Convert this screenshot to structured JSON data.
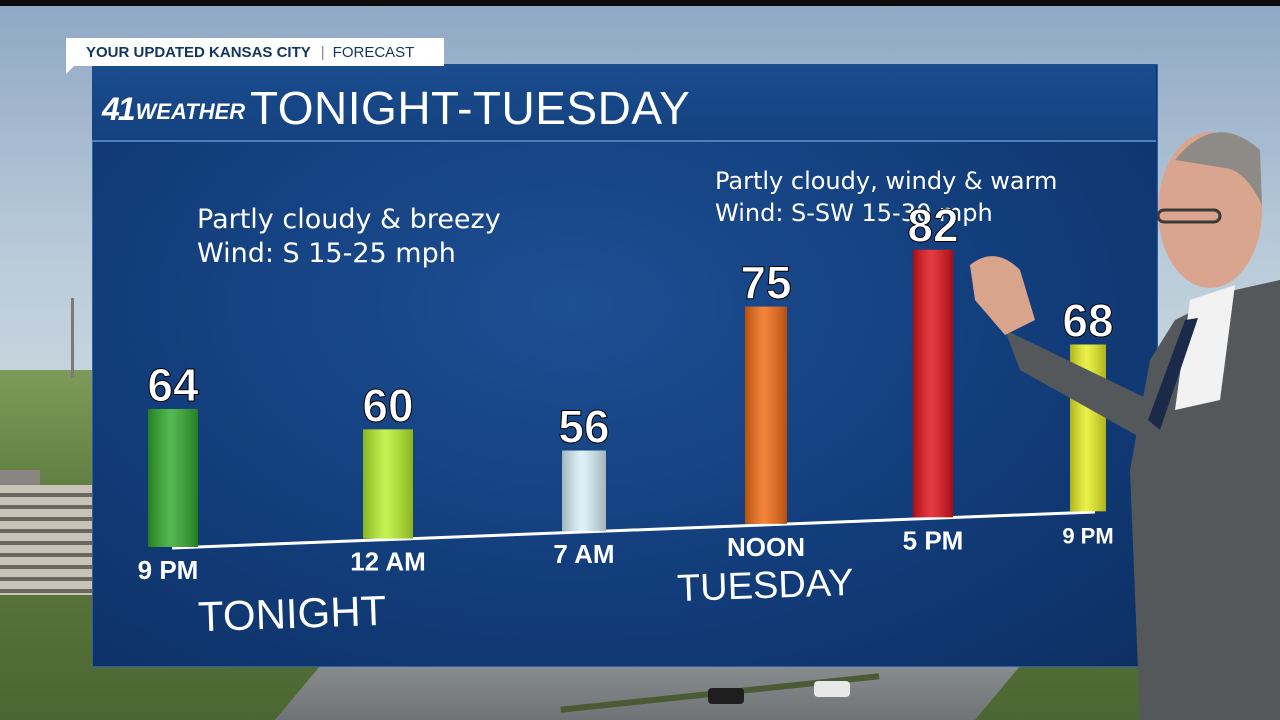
{
  "tag": {
    "city": "YOUR UPDATED KANSAS CITY",
    "label": "FORECAST"
  },
  "header": {
    "logo_number": "41",
    "logo_word": "WEATHER",
    "title": "TONIGHT-TUESDAY"
  },
  "tonight": {
    "line1": "Partly cloudy & breezy",
    "line2": "Wind: S 15-25 mph",
    "section_label": "TONIGHT"
  },
  "tuesday": {
    "line1_a": "Partly cloudy, ",
    "line1_b": "windy & warm",
    "line2_a": "Wind: S-SW 15-30 ",
    "line2_b": "mph",
    "section_label": "TUESDAY"
  },
  "colors": {
    "panel": "#123d7b",
    "header": "#15427f",
    "text": "#ffffff"
  },
  "chart_data": {
    "type": "bar",
    "categories": [
      "9 PM",
      "12 AM",
      "7 AM",
      "NOON",
      "5 PM",
      "9 PM"
    ],
    "values": [
      64,
      60,
      56,
      75,
      82,
      68
    ],
    "value_labels": [
      "64",
      "60",
      "56",
      "75",
      "82",
      "68"
    ],
    "colors": [
      "#2fa82a",
      "#b6f02c",
      "#d8f0f8",
      "#f26a12",
      "#e0101a",
      "#e6ee22"
    ],
    "ylim": [
      40,
      90
    ]
  }
}
